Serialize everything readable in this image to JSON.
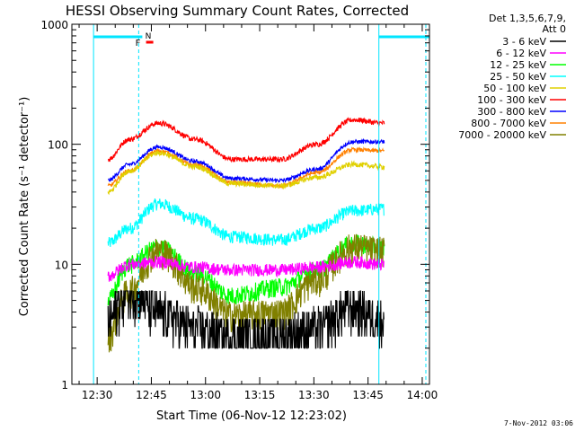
{
  "chart_data": {
    "type": "line",
    "title": "HESSI Observing Summary Count Rates, Corrected",
    "xlabel": "Start Time (06-Nov-12 12:23:02)",
    "ylabel": "Corrected Count Rate (s⁻¹ detector⁻¹)",
    "yscale": "log",
    "ylim": [
      1,
      1000
    ],
    "xlim_minutes_after_1230": [
      -7,
      92
    ],
    "x_ticks": [
      "12:30",
      "12:45",
      "13:00",
      "13:15",
      "13:30",
      "13:45",
      "14:00"
    ],
    "y_ticks": [
      "1",
      "10",
      "100",
      "1000"
    ],
    "legend_header": [
      "Det 1,3,5,6,7,9,",
      "Att 0"
    ],
    "legend_position": "right",
    "footer": "7-Nov-2012 03:06",
    "flags": {
      "F": "F",
      "N": "N"
    },
    "series": [
      {
        "name": "3 - 6 keV",
        "color": "#000000",
        "profile": [
          3.5,
          6,
          4,
          3.0,
          2.5,
          2.6,
          3.0,
          4.5,
          3.5
        ]
      },
      {
        "name": "6 - 12 keV",
        "color": "#ff00ff",
        "profile": [
          8,
          10,
          10.5,
          9.5,
          9,
          9,
          9.5,
          10.5,
          10
        ]
      },
      {
        "name": "12 - 25 keV",
        "color": "#00ff00",
        "profile": [
          5,
          10,
          14,
          8.5,
          5.5,
          6.5,
          9,
          15,
          14
        ]
      },
      {
        "name": "25 - 50 keV",
        "color": "#00ffff",
        "profile": [
          15,
          20,
          32,
          24,
          17,
          16,
          20,
          28,
          29
        ]
      },
      {
        "name": "50 - 100 keV",
        "color": "#e0d000",
        "profile": [
          40,
          60,
          85,
          65,
          47,
          45,
          53,
          68,
          65
        ]
      },
      {
        "name": "100 - 300 keV",
        "color": "#ff0000",
        "profile": [
          75,
          110,
          150,
          110,
          75,
          75,
          100,
          160,
          150
        ]
      },
      {
        "name": "300 - 800 keV",
        "color": "#0000ff",
        "profile": [
          50,
          68,
          95,
          72,
          52,
          50,
          62,
          105,
          105
        ]
      },
      {
        "name": "800 - 7000 keV",
        "color": "#ff8000",
        "profile": [
          45,
          60,
          88,
          67,
          48,
          45,
          58,
          90,
          88
        ]
      },
      {
        "name": "7000 - 20000 keV",
        "color": "#808000",
        "profile": [
          2.5,
          6,
          13,
          6.5,
          3.8,
          4.0,
          7.5,
          14,
          13
        ]
      }
    ],
    "profile_x_minutes_after_1230": [
      3,
      9,
      17,
      27,
      37,
      51,
      61,
      71,
      79
    ],
    "data_start_minute": 3,
    "data_end_minute": 79.5,
    "markers": [
      {
        "kind": "cyan-solid",
        "minute": -1
      },
      {
        "kind": "cyan-dashed",
        "minute": 11.5
      },
      {
        "kind": "cyan-solid",
        "minute": 78
      },
      {
        "kind": "cyan-dashed",
        "minute": 91
      }
    ],
    "eclipse_bars": [
      {
        "from": -1,
        "to": 12.5
      },
      {
        "from": 78,
        "to": 92
      }
    ]
  }
}
